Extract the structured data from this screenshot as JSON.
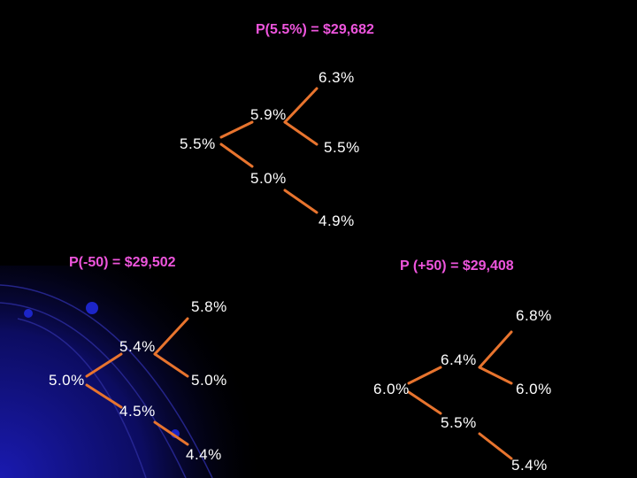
{
  "colors": {
    "background": "#000000",
    "title_text": "#ee55dd",
    "value_text": "#ffffff",
    "branch": "#e8742e",
    "decor_glow": "#1a1aa0",
    "decor_dot": "#1c25c8"
  },
  "titles": {
    "top": "P(5.5%) = $29,682",
    "left": "P(-50) = $29,502",
    "right": "P (+50) = $29,408"
  },
  "trees": {
    "top": {
      "root": "5.5%",
      "up1": "5.9%",
      "down1": "5.0%",
      "upup": "6.3%",
      "updown": "5.5%",
      "downdown": "4.9%"
    },
    "left": {
      "root": "5.0%",
      "up1": "5.4%",
      "down1": "4.5%",
      "upup": "5.8%",
      "updown": "5.0%",
      "downdown": "4.4%"
    },
    "right": {
      "root": "6.0%",
      "up1": "6.4%",
      "down1": "5.5%",
      "upup": "6.8%",
      "updown": "6.0%",
      "downdown": "5.4%"
    }
  }
}
